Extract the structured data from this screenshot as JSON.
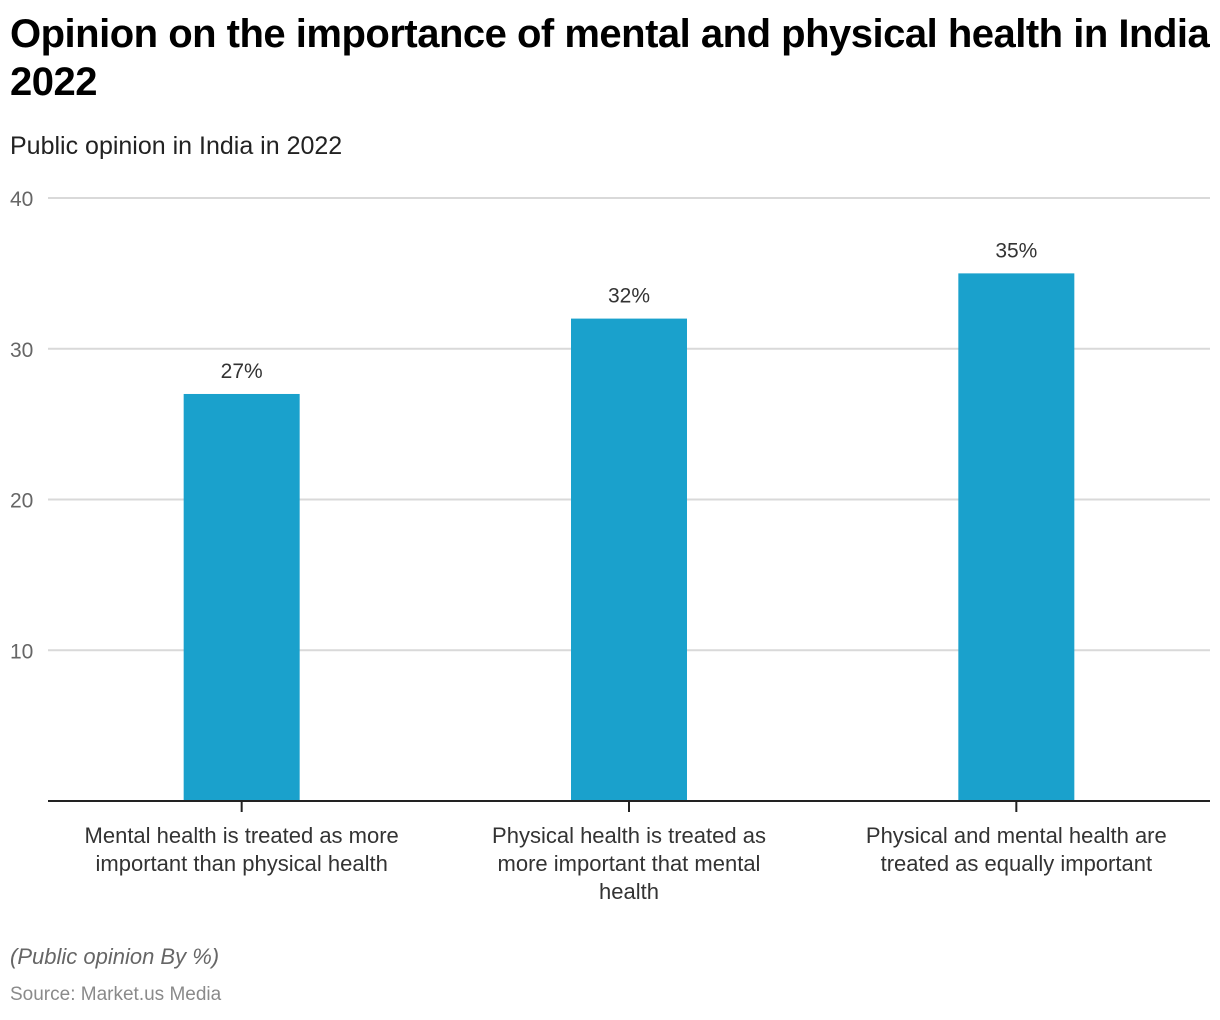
{
  "header": {
    "title": "Opinion on the importance of mental and physical health in India 2022",
    "subtitle": "Public opinion in India in 2022"
  },
  "footer": {
    "note": "(Public opinion By %)",
    "source": "Source: Market.us Media"
  },
  "colors": {
    "bar": "#1aa1cc",
    "grid": "#d9d9d9",
    "axis": "#222222"
  },
  "chart_data": {
    "type": "bar",
    "title": "Opinion on the importance of mental and physical health in India 2022",
    "subtitle": "Public opinion in India in 2022",
    "xlabel": "",
    "ylabel": "",
    "ylim": [
      0,
      40
    ],
    "yticks": [
      10,
      20,
      30,
      40
    ],
    "grid": true,
    "legend": "none",
    "categories": [
      [
        "Mental health is treated as more",
        "important than physical health"
      ],
      [
        "Physical health is treated as",
        "more important that mental",
        "health"
      ],
      [
        "Physical and mental health are",
        "treated as equally important"
      ]
    ],
    "values": [
      27,
      32,
      35
    ],
    "data_labels": [
      "27%",
      "32%",
      "35%"
    ]
  }
}
